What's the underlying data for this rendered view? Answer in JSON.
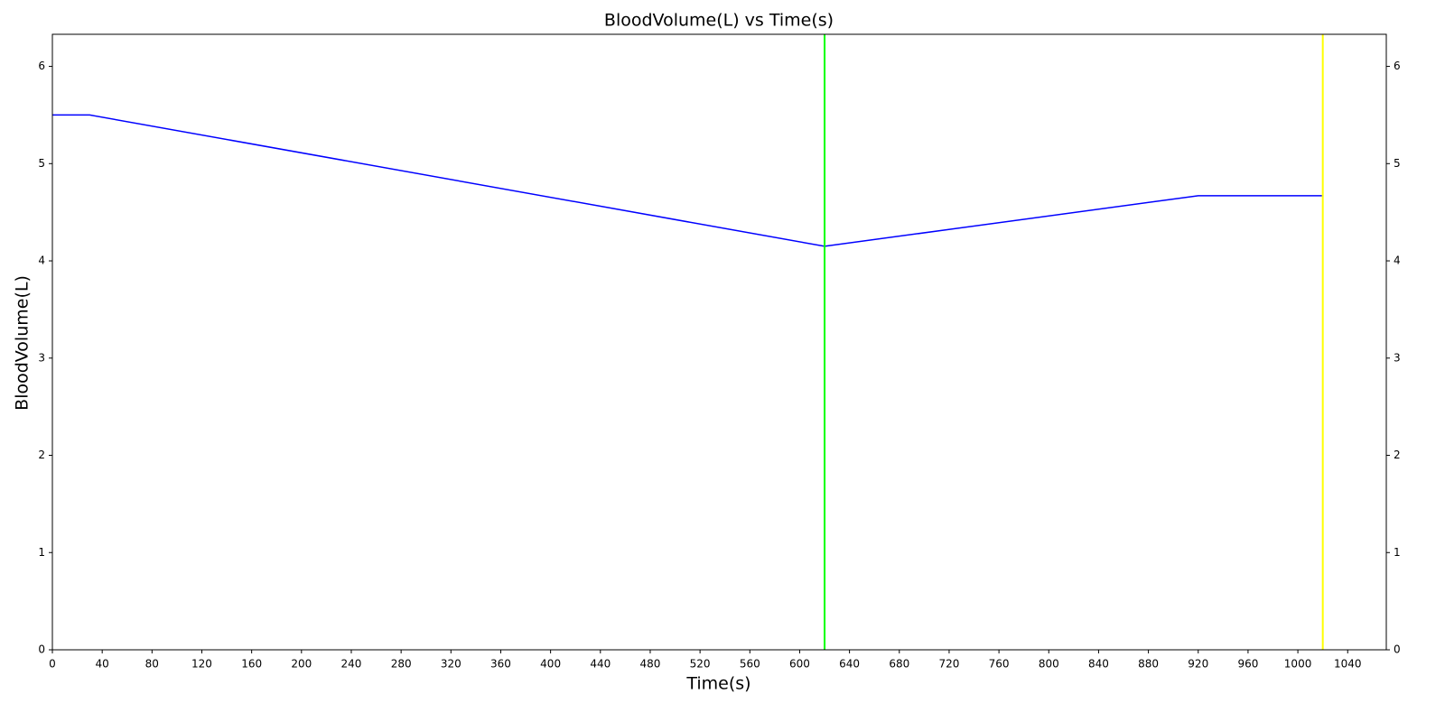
{
  "chart_data": {
    "type": "line",
    "title": "BloodVolume(L) vs Time(s)",
    "x_label": "Time(s)",
    "y_label": "BloodVolume(L)",
    "x": [
      0,
      30,
      620,
      920,
      1020
    ],
    "series": [
      {
        "color": "#0000ff",
        "values": [
          5.5,
          5.5,
          4.15,
          4.67,
          4.67
        ]
      }
    ],
    "xlim": [
      0,
      1071
    ],
    "ylim": [
      0,
      6.33
    ],
    "xticks": [
      0,
      40,
      80,
      120,
      160,
      200,
      240,
      280,
      320,
      360,
      400,
      440,
      480,
      520,
      560,
      600,
      640,
      680,
      720,
      760,
      800,
      840,
      880,
      920,
      960,
      1000,
      1040
    ],
    "yticks": [
      0,
      1,
      2,
      3,
      4,
      5,
      6
    ],
    "y2lim": [
      0,
      6.33
    ],
    "y2ticks": [
      0,
      1,
      2,
      3,
      4,
      5,
      6
    ],
    "vlines": [
      {
        "x": 620,
        "color": "#00ff00"
      },
      {
        "x": 1020,
        "color": "#ffff00"
      }
    ],
    "grid": false
  }
}
